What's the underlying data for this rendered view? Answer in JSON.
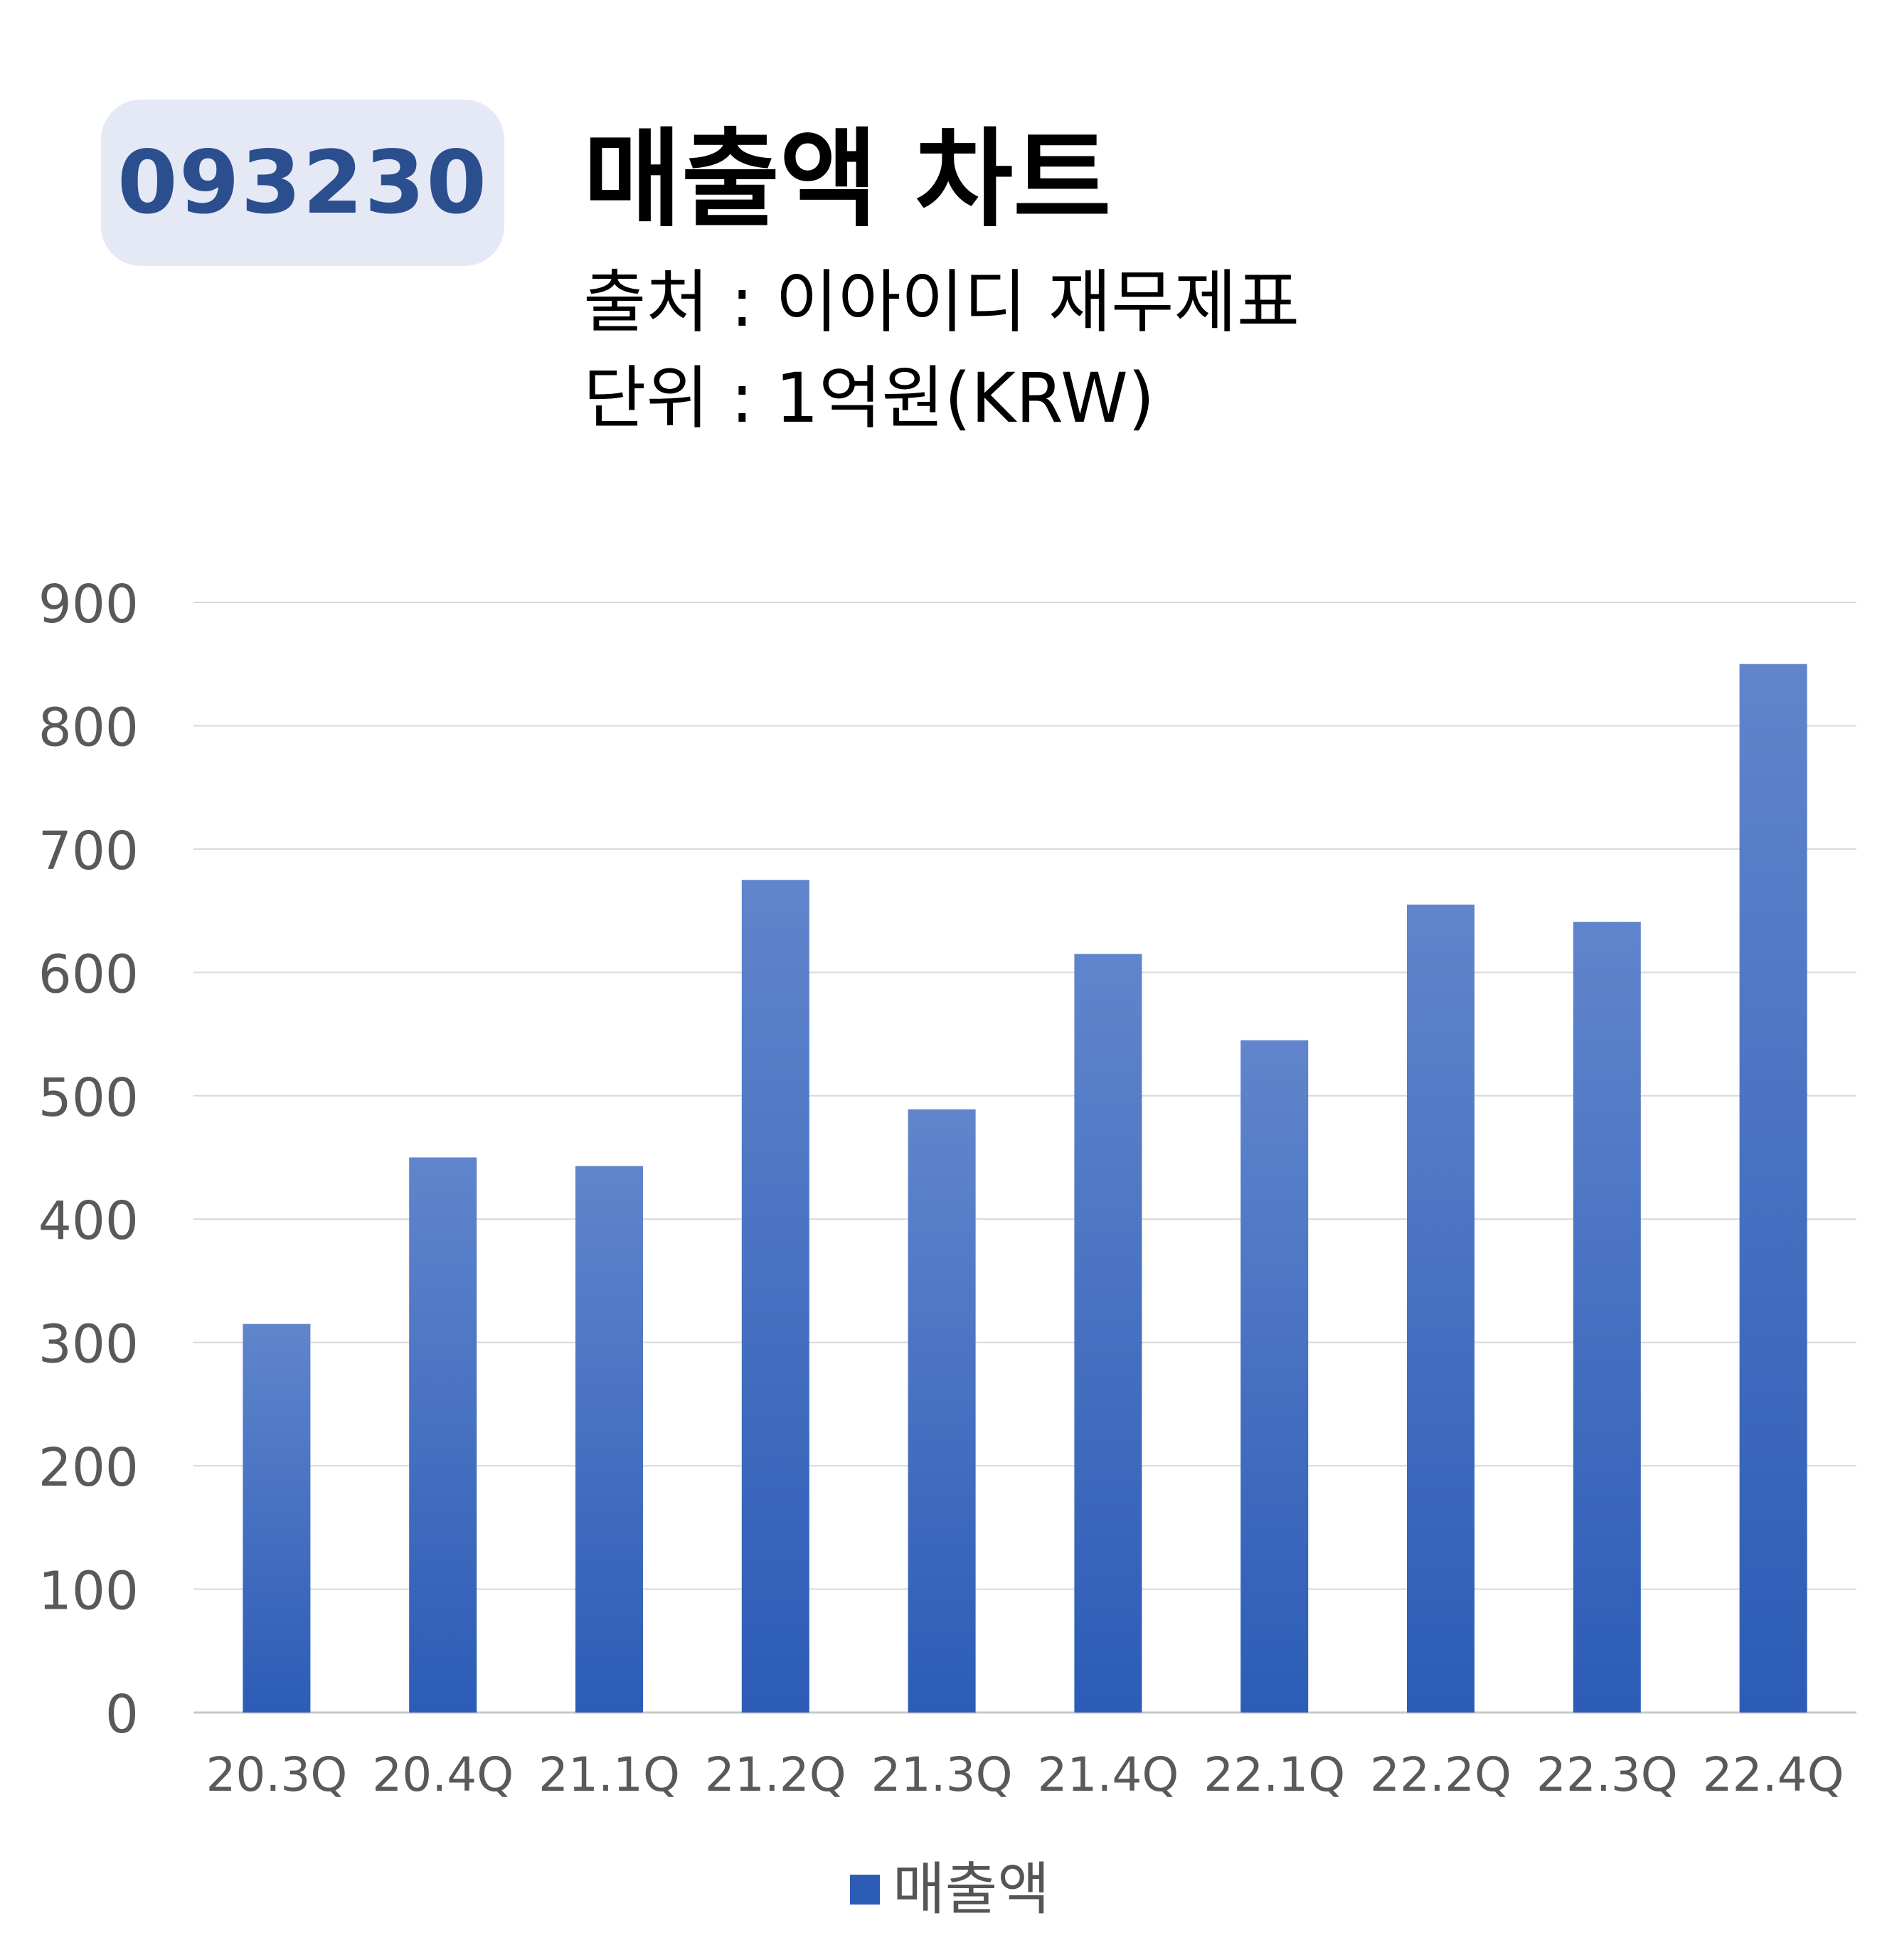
{
  "header": {
    "ticker": "093230",
    "title": "매출액 차트",
    "source_line": "출처 : 이아이디 재무제표",
    "unit_line": "단위 : 1억원(KRW)"
  },
  "colors": {
    "badge_bg": "#e4e9f5",
    "badge_text": "#2b4f8e",
    "bar_top": "#6085cc",
    "bar_bottom": "#2c5cb6",
    "grid": "#d9d9d9",
    "axis_text": "#595959"
  },
  "chart_data": {
    "type": "bar",
    "categories": [
      "20.3Q",
      "20.4Q",
      "21.1Q",
      "21.2Q",
      "21.3Q",
      "21.4Q",
      "22.1Q",
      "22.2Q",
      "22.3Q",
      "22.4Q"
    ],
    "series": [
      {
        "name": "매출액",
        "values": [
          315,
          450,
          443,
          675,
          489,
          615,
          545,
          655,
          641,
          850
        ]
      }
    ],
    "ylim": [
      0,
      900
    ],
    "yticks": [
      0,
      100,
      200,
      300,
      400,
      500,
      600,
      700,
      800,
      900
    ],
    "grid": true,
    "legend": "bottom"
  }
}
